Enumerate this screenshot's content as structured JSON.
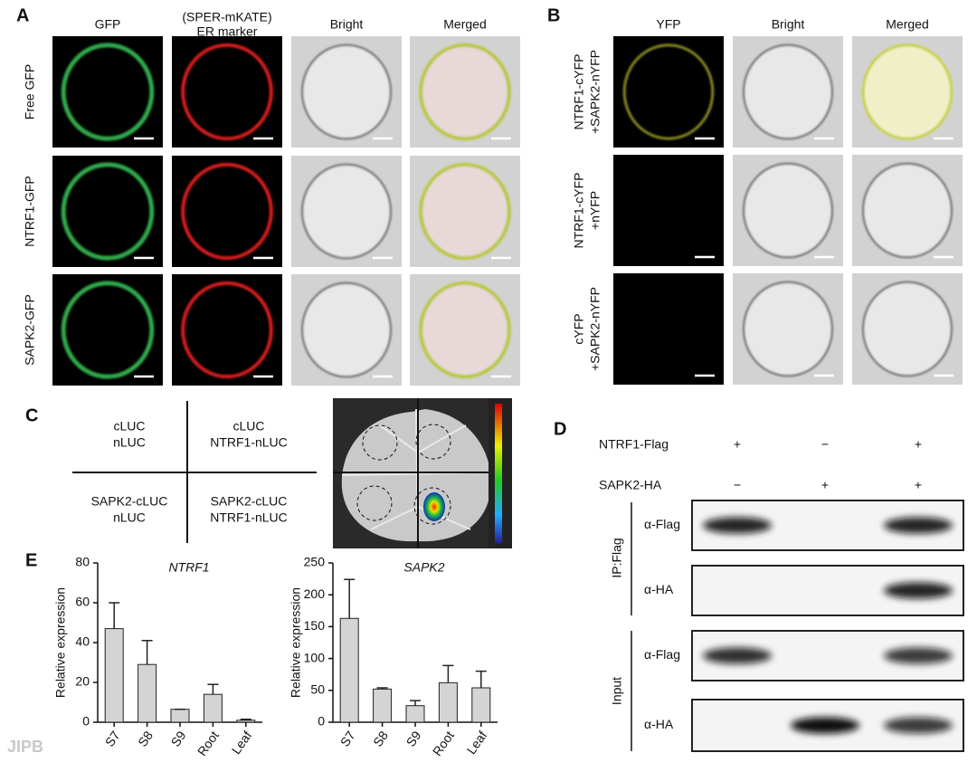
{
  "panel_a": {
    "label": "A",
    "columns": [
      [
        "GFP"
      ],
      [
        "(SPER-mKATE)",
        "ER marker"
      ],
      [
        "Bright"
      ],
      [
        "Merged"
      ]
    ],
    "rows": [
      [
        "Free GFP"
      ],
      [
        "NTRF1-GFP"
      ],
      [
        "SAPK2-GFP"
      ]
    ]
  },
  "panel_b": {
    "label": "B",
    "columns": [
      [
        "YFP"
      ],
      [
        "Bright"
      ],
      [
        "Merged"
      ]
    ],
    "rows": [
      [
        "NTRF1-cYFP",
        "+SAPK2-nYFP"
      ],
      [
        "NTRF1-cYFP",
        "+nYFP"
      ],
      [
        "cYFP",
        "+SAPK2-nYFP"
      ]
    ]
  },
  "panel_c": {
    "label": "C",
    "quadrants": [
      [
        "cLUC",
        "nLUC"
      ],
      [
        "cLUC",
        "NTRF1-nLUC"
      ],
      [
        "SAPK2-cLUC",
        "nLUC"
      ],
      [
        "SAPK2-cLUC",
        "NTRF1-nLUC"
      ]
    ]
  },
  "panel_d": {
    "label": "D",
    "conditions": [
      {
        "name": "NTRF1-Flag",
        "signs": [
          "+",
          "−",
          "+"
        ]
      },
      {
        "name": "SAPK2-HA",
        "signs": [
          "−",
          "+",
          "+"
        ]
      }
    ],
    "groups": [
      {
        "name": "IP:Flag",
        "blots": [
          "α-Flag",
          "α-HA"
        ]
      },
      {
        "name": "Input",
        "blots": [
          "α-Flag",
          "α-HA"
        ]
      }
    ]
  },
  "panel_e": {
    "label": "E"
  },
  "chart_data": [
    {
      "type": "bar",
      "title": "NTRF1",
      "y_label": "Relative expression",
      "categories": [
        "S7",
        "S8",
        "S9",
        "Root",
        "Leaf"
      ],
      "values": [
        47,
        29,
        6.5,
        14,
        1
      ],
      "errors": [
        13,
        12,
        0,
        5,
        0.5
      ],
      "color": "#d4d4d4",
      "ylim": [
        0,
        80
      ],
      "yticks": [
        0,
        20,
        40,
        60,
        80
      ]
    },
    {
      "type": "bar",
      "title": "SAPK2",
      "y_label": "Relative expression",
      "categories": [
        "S7",
        "S8",
        "S9",
        "Root",
        "Leaf"
      ],
      "values": [
        163,
        52,
        26,
        62,
        54
      ],
      "errors": [
        61,
        2,
        8,
        27,
        26
      ],
      "color": "#d4d4d4",
      "ylim": [
        0,
        250
      ],
      "yticks": [
        0,
        50,
        100,
        150,
        200,
        250
      ]
    }
  ],
  "watermark": "JIPB"
}
